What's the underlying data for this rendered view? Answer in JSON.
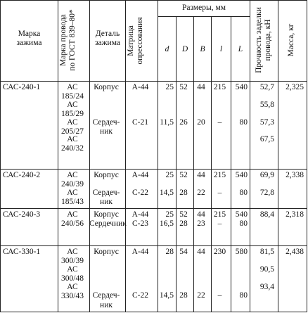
{
  "header": {
    "mark": [
      "Марка",
      "зажима"
    ],
    "wire": [
      "Марка провода",
      "по ГОСТ 839–80*"
    ],
    "part": [
      "Деталь",
      "зажима"
    ],
    "matrix": [
      "Матрица",
      "опрессования"
    ],
    "sizes": "Размеры, мм",
    "dims": [
      "d",
      "D",
      "B",
      "l",
      "L"
    ],
    "strength": [
      "Прочность заделки",
      "провода, кН"
    ],
    "mass": "Масса, кг"
  },
  "rows": [
    {
      "mark": "САС-240-1",
      "mass": "2,325",
      "wires": [
        [
          "АС",
          "185/24"
        ],
        [
          "АС",
          "185/29"
        ],
        [
          "АС",
          "205/27"
        ],
        [
          "АС",
          "240/32"
        ]
      ],
      "strength": [
        "52,7",
        "55,8",
        "57,3",
        "67,5"
      ],
      "parts": [
        {
          "part": "Корпус",
          "matrix": "А-44",
          "d": "25",
          "D": "52",
          "B": "44",
          "l": "215",
          "L": "540"
        },
        {
          "part": [
            "Сердеч-",
            "ник"
          ],
          "matrix": "С-21",
          "d": "11,5",
          "D": "26",
          "B": "20",
          "l": "–",
          "L": "80"
        }
      ]
    },
    {
      "mark": "САС-240-2",
      "mass": "2,338",
      "wires": [
        [
          "АС",
          "240/39"
        ],
        [
          "АС",
          "185/43"
        ]
      ],
      "strength": [
        "69,9",
        "72,8"
      ],
      "parts": [
        {
          "part": "Корпус",
          "matrix": "А-44",
          "d": "25",
          "D": "52",
          "B": "44",
          "l": "215",
          "L": "540"
        },
        {
          "part": [
            "Сердеч-",
            "ник"
          ],
          "matrix": "С-22",
          "d": "14,5",
          "D": "28",
          "B": "22",
          "l": "–",
          "L": "80"
        }
      ]
    },
    {
      "mark": "САС-240-3",
      "mass": "2,318",
      "wires": [
        [
          "АС",
          "240/56"
        ]
      ],
      "strength": [
        "88,4"
      ],
      "parts": [
        {
          "part": "Корпус",
          "matrix": "А-44",
          "d": "25",
          "D": "52",
          "B": "44",
          "l": "215",
          "L": "540"
        },
        {
          "part": [
            "Сердечник"
          ],
          "matrix": "С-23",
          "d": "16,5",
          "D": "28",
          "B": "23",
          "l": "–",
          "L": "80"
        }
      ]
    },
    {
      "mark": "САС-330-1",
      "mass": "2,438",
      "wires": [
        [
          "АС",
          "300/39"
        ],
        [
          "АС",
          "300/48"
        ],
        [
          "АС",
          "330/43"
        ]
      ],
      "strength": [
        "81,5",
        "90,5",
        "93,4"
      ],
      "parts": [
        {
          "part": "Корпус",
          "matrix": "А-44",
          "d": "28",
          "D": "54",
          "B": "44",
          "l": "230",
          "L": "580"
        },
        {
          "part": [
            "Сердеч-",
            "ник"
          ],
          "matrix": "С-22",
          "d": "14,5",
          "D": "28",
          "B": "22",
          "l": "–",
          "L": "80"
        }
      ]
    }
  ]
}
